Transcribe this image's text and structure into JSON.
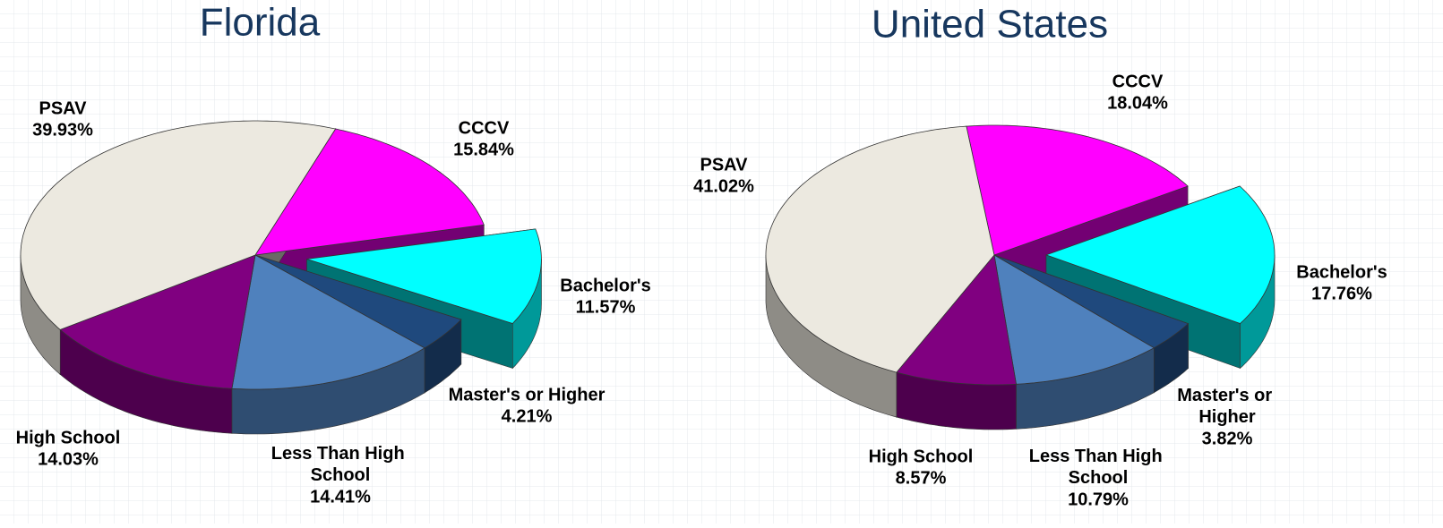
{
  "chart_data": [
    {
      "type": "pie",
      "title": "Florida",
      "categories": [
        "CCCV",
        "Bachelor's",
        "Master's or Higher",
        "Less Than High School",
        "High School",
        "PSAV"
      ],
      "values": [
        15.84,
        11.57,
        4.21,
        14.41,
        14.03,
        39.93
      ],
      "value_labels": [
        "15.84%",
        "11.57%",
        "4.21%",
        "14.41%",
        "14.03%",
        "39.93%"
      ],
      "colors": [
        "#ff00ff",
        "#00ffff",
        "#1f497d",
        "#4f81bd",
        "#800080",
        "#ece9e0"
      ]
    },
    {
      "type": "pie",
      "title": "United States",
      "categories": [
        "CCCV",
        "Bachelor's",
        "Master's or Higher",
        "Less Than High School",
        "High School",
        "PSAV"
      ],
      "values": [
        18.04,
        17.76,
        3.82,
        10.79,
        8.57,
        41.02
      ],
      "value_labels": [
        "18.04%",
        "17.76%",
        "3.82%",
        "10.79%",
        "8.57%",
        "41.02%"
      ],
      "colors": [
        "#ff00ff",
        "#00ffff",
        "#1f497d",
        "#4f81bd",
        "#800080",
        "#ece9e0"
      ]
    }
  ]
}
